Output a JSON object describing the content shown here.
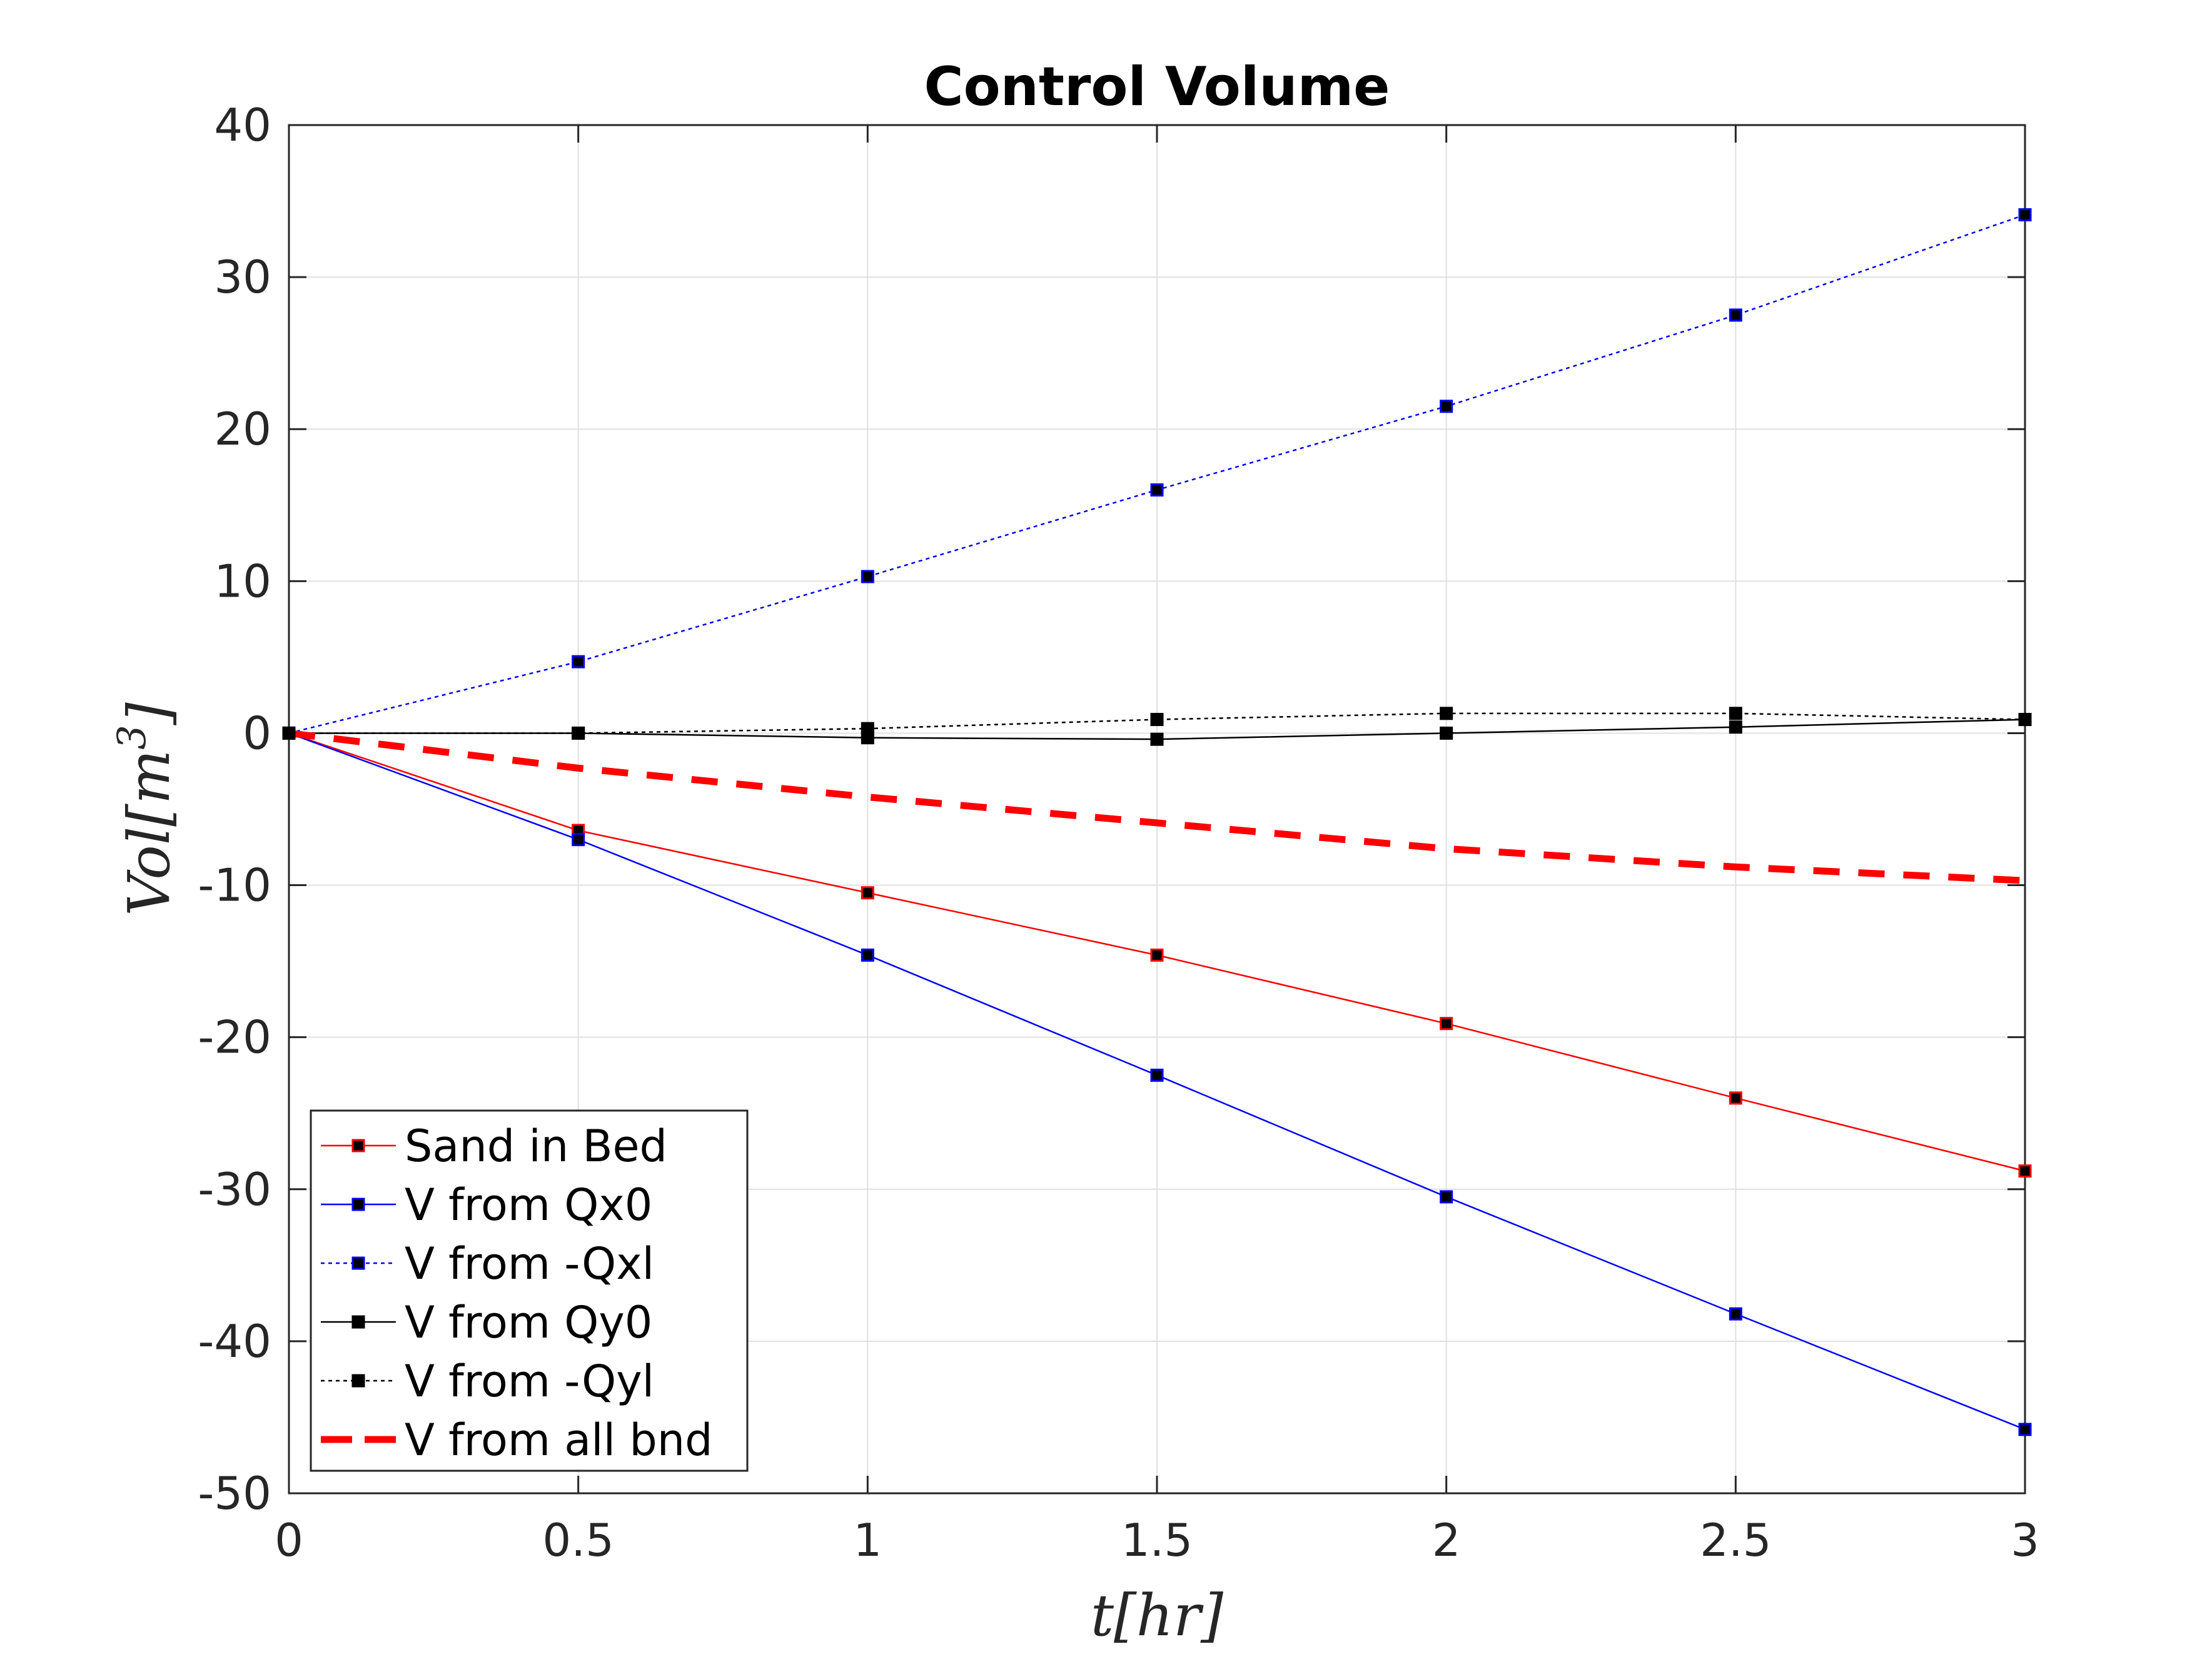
{
  "chart_data": {
    "type": "line",
    "title": "Control Volume",
    "xlabel": "t[hr]",
    "ylabel": "Vol[m3]",
    "ylabel_base": "Vol[m",
    "ylabel_sup": "3",
    "ylabel_close": "]",
    "xlim": [
      0,
      3
    ],
    "ylim": [
      -50,
      40
    ],
    "xticks": [
      0,
      0.5,
      1,
      1.5,
      2,
      2.5,
      3
    ],
    "xtick_labels": [
      "0",
      "0.5",
      "1",
      "1.5",
      "2",
      "2.5",
      "3"
    ],
    "yticks": [
      -50,
      -40,
      -30,
      -20,
      -10,
      0,
      10,
      20,
      30,
      40
    ],
    "ytick_labels": [
      "-50",
      "-40",
      "-30",
      "-20",
      "-10",
      "0",
      "10",
      "20",
      "30",
      "40"
    ],
    "grid": true,
    "legend_position": "bottom-left",
    "x": [
      0,
      0.5,
      1,
      1.5,
      2,
      2.5,
      3
    ],
    "series": [
      {
        "name": "Sand in Bed",
        "color": "#ff0000",
        "line": "solid",
        "marker": "square",
        "values": [
          0,
          -6.4,
          -10.5,
          -14.6,
          -19.1,
          -24.0,
          -28.8
        ]
      },
      {
        "name": "V from Qx0",
        "color": "#0000ff",
        "line": "solid",
        "marker": "square",
        "values": [
          0,
          -7.0,
          -14.6,
          -22.5,
          -30.5,
          -38.2,
          -45.8
        ]
      },
      {
        "name": "V from -Qxl",
        "color": "#0000ff",
        "line": "dotted",
        "marker": "square",
        "values": [
          0,
          4.7,
          10.3,
          16.0,
          21.5,
          27.5,
          34.1
        ]
      },
      {
        "name": "V from Qy0",
        "color": "#000000",
        "line": "solid",
        "marker": "square",
        "values": [
          0,
          0.0,
          -0.3,
          -0.4,
          0.0,
          0.4,
          0.9
        ]
      },
      {
        "name": "V from -Qyl",
        "color": "#000000",
        "line": "dotted",
        "marker": "square",
        "values": [
          0,
          0.0,
          0.3,
          0.9,
          1.3,
          1.3,
          0.9
        ]
      },
      {
        "name": "V from all bnd",
        "color": "#ff0000",
        "line": "dashed-thick",
        "marker": "none",
        "values": [
          0,
          -2.3,
          -4.2,
          -5.9,
          -7.6,
          -8.8,
          -9.7
        ]
      }
    ]
  }
}
